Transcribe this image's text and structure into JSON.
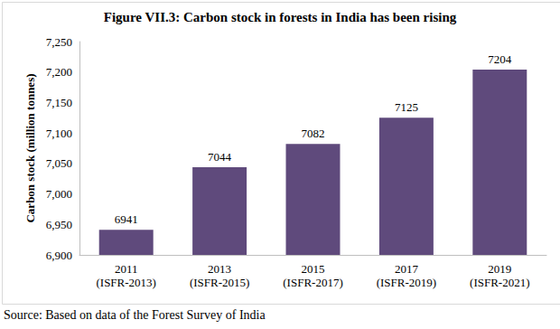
{
  "chart_data": {
    "type": "bar",
    "title": "Figure VII.3: Carbon stock in forests in India has been rising",
    "y_label": "Carbon stock (million tonnes)",
    "categories": [
      "2011\n(ISFR-2013)",
      "2013\n(ISFR-2015)",
      "2015\n(ISFR-2017)",
      "2017\n(ISFR-2019)",
      "2019\n(ISFR-2021)"
    ],
    "values": [
      6941,
      7044,
      7082,
      7125,
      7204
    ],
    "color": "#5f4a7c",
    "ylim": [
      6900,
      7250
    ],
    "yticks": [
      6900,
      6950,
      7000,
      7050,
      7100,
      7150,
      7200,
      7250
    ],
    "grid": false,
    "data_labels": true,
    "source": "Source: Based on data of the Forest Survey of India"
  }
}
